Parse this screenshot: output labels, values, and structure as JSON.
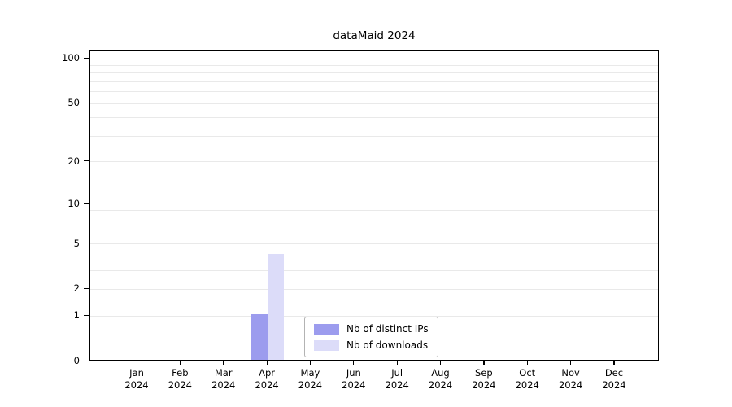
{
  "chart_data": {
    "type": "bar",
    "title": "dataMaid 2024",
    "year": "2024",
    "categories": [
      "Jan",
      "Feb",
      "Mar",
      "Apr",
      "May",
      "Jun",
      "Jul",
      "Aug",
      "Sep",
      "Oct",
      "Nov",
      "Dec"
    ],
    "series": [
      {
        "name": "Nb of distinct IPs",
        "color": "#9c9cee",
        "values": [
          0,
          0,
          0,
          1,
          0,
          0,
          0,
          0,
          0,
          0,
          0,
          0
        ]
      },
      {
        "name": "Nb of downloads",
        "color": "#dcdcf9",
        "values": [
          0,
          0,
          0,
          4,
          0,
          0,
          0,
          0,
          0,
          0,
          0,
          0
        ]
      }
    ],
    "yscale": "log1p",
    "yticks": [
      0,
      1,
      2,
      5,
      10,
      20,
      50,
      100
    ],
    "grid_values": [
      1,
      2,
      3,
      4,
      5,
      6,
      7,
      8,
      9,
      10,
      20,
      30,
      40,
      50,
      60,
      70,
      80,
      90,
      100
    ],
    "ylim": [
      0,
      112
    ],
    "grid": "horizontal-minor",
    "legend_position": "lower-center",
    "axis_color": "#000000",
    "grid_color": "#e9e9e9",
    "background_color": "#ffffff"
  }
}
